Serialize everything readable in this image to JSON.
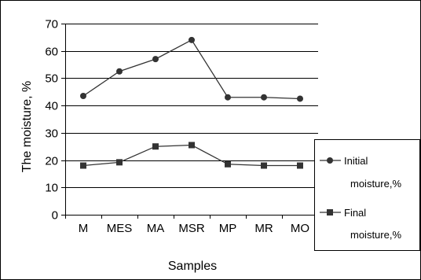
{
  "chart_data": {
    "type": "line",
    "categories": [
      "M",
      "MES",
      "MA",
      "MSR",
      "MP",
      "MR",
      "MO"
    ],
    "series": [
      {
        "name": "Initial moisture,%",
        "marker": "circle",
        "values": [
          43.5,
          52.5,
          57,
          64,
          43,
          43,
          42.5
        ]
      },
      {
        "name": "Final moisture,%",
        "marker": "square",
        "values": [
          18,
          19.2,
          25,
          25.5,
          18.5,
          18,
          18
        ]
      }
    ],
    "xlabel": "Samples",
    "ylabel": "The moisture, %",
    "ylim": [
      0,
      70
    ],
    "yticks": [
      0,
      10,
      20,
      30,
      40,
      50,
      60,
      70
    ],
    "grid": true,
    "legend": "right",
    "colors": {
      "line": "#333333",
      "marker": "#333333",
      "grid": "#000000",
      "background": "#ffffff"
    }
  },
  "legend": {
    "initial_line1": "Initial",
    "initial_line2": "moisture,%",
    "final_line1": "Final",
    "final_line2": "moisture,%"
  }
}
